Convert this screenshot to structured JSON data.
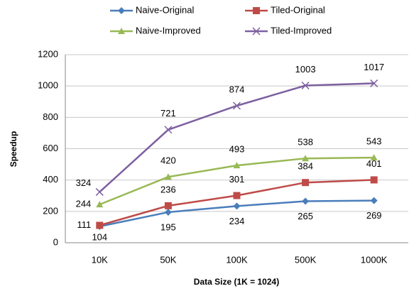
{
  "chart_data": {
    "type": "line",
    "xlabel": "Data Size (1K = 1024)",
    "ylabel": "Speedup",
    "categories": [
      "10K",
      "50K",
      "100K",
      "500K",
      "1000K"
    ],
    "series": [
      {
        "name": "Naive-Original",
        "color": "#4a7ebb",
        "marker": "diamond",
        "values": [
          104,
          195,
          234,
          265,
          269
        ]
      },
      {
        "name": "Tiled-Original",
        "color": "#be4b48",
        "marker": "square",
        "values": [
          111,
          236,
          301,
          384,
          401
        ]
      },
      {
        "name": "Naive-Improved",
        "color": "#98b954",
        "marker": "triangle",
        "values": [
          244,
          420,
          493,
          538,
          543
        ]
      },
      {
        "name": "Tiled-Improved",
        "color": "#7d60a0",
        "marker": "x",
        "values": [
          324,
          721,
          874,
          1003,
          1017
        ]
      }
    ],
    "ylim": [
      0,
      1200
    ],
    "yticks": [
      0,
      200,
      400,
      600,
      800,
      1000,
      1200
    ],
    "grid": true
  }
}
